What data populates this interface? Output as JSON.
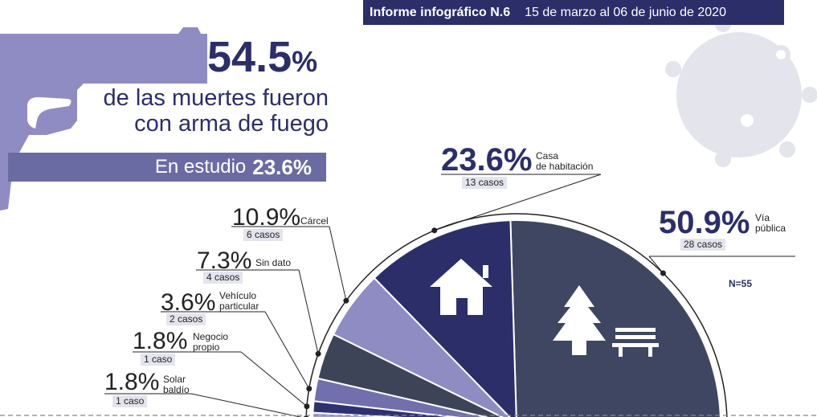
{
  "header": {
    "report": "Informe infográfico N.6",
    "dates": "15 de marzo al 06 de junio de 2020"
  },
  "headline": {
    "value": "54.5",
    "unit": "%",
    "line1": "de las muertes fueron",
    "line2": "con arma de fuego",
    "study_label": "En estudio",
    "study_value": "23.6%"
  },
  "n_label": "N=55",
  "icons": [
    "pistol-silhouette",
    "virus-icon",
    "house-icon",
    "tree-icon",
    "bench-icon"
  ],
  "colors": {
    "navy": "#2b2e68",
    "slate": "#3f4662",
    "lavender": "#8f8cc4",
    "steel": "#3d4458",
    "periwinkle": "#716fae",
    "deep_blue": "#2e3272",
    "lilac": "#a7a4d5",
    "light_gray": "#e3e4ec"
  },
  "chart_data": {
    "type": "pie",
    "total": 55,
    "slices": [
      {
        "label": "Vía pública",
        "pct_text": "50.9%",
        "value": 50.9,
        "cases": 28,
        "cases_text": "28 casos",
        "color": "#3f4662"
      },
      {
        "label": "Casa de habitación",
        "pct_text": "23.6%",
        "value": 23.6,
        "cases": 13,
        "cases_text": "13 casos",
        "color": "#2b2e68"
      },
      {
        "label": "Cárcel",
        "pct_text": "10.9%",
        "value": 10.9,
        "cases": 6,
        "cases_text": "6 casos",
        "color": "#8f8cc4"
      },
      {
        "label": "Sin dato",
        "pct_text": "7.3%",
        "value": 7.3,
        "cases": 4,
        "cases_text": "4 casos",
        "color": "#3d4458"
      },
      {
        "label": "Vehículo particular",
        "pct_text": "3.6%",
        "value": 3.6,
        "cases": 2,
        "cases_text": "2 casos",
        "color": "#716fae"
      },
      {
        "label": "Negocio propio",
        "pct_text": "1.8%",
        "value": 1.8,
        "cases": 1,
        "cases_text": "1 caso",
        "color": "#2e3272"
      },
      {
        "label": "Solar baldío",
        "pct_text": "1.8%",
        "value": 1.8,
        "cases": 1,
        "cases_text": "1 caso",
        "color": "#a7a4d5"
      }
    ],
    "labels_lines": {
      "via": [
        "Vía",
        "pública"
      ],
      "casa": [
        "Casa",
        "de habitación"
      ],
      "carcel": [
        "Cárcel"
      ],
      "sindato": [
        "Sin dato"
      ],
      "vehiculo": [
        "Vehículo",
        "particular"
      ],
      "negocio": [
        "Negocio",
        "propio"
      ],
      "solar": [
        "Solar",
        "baldío"
      ]
    }
  }
}
